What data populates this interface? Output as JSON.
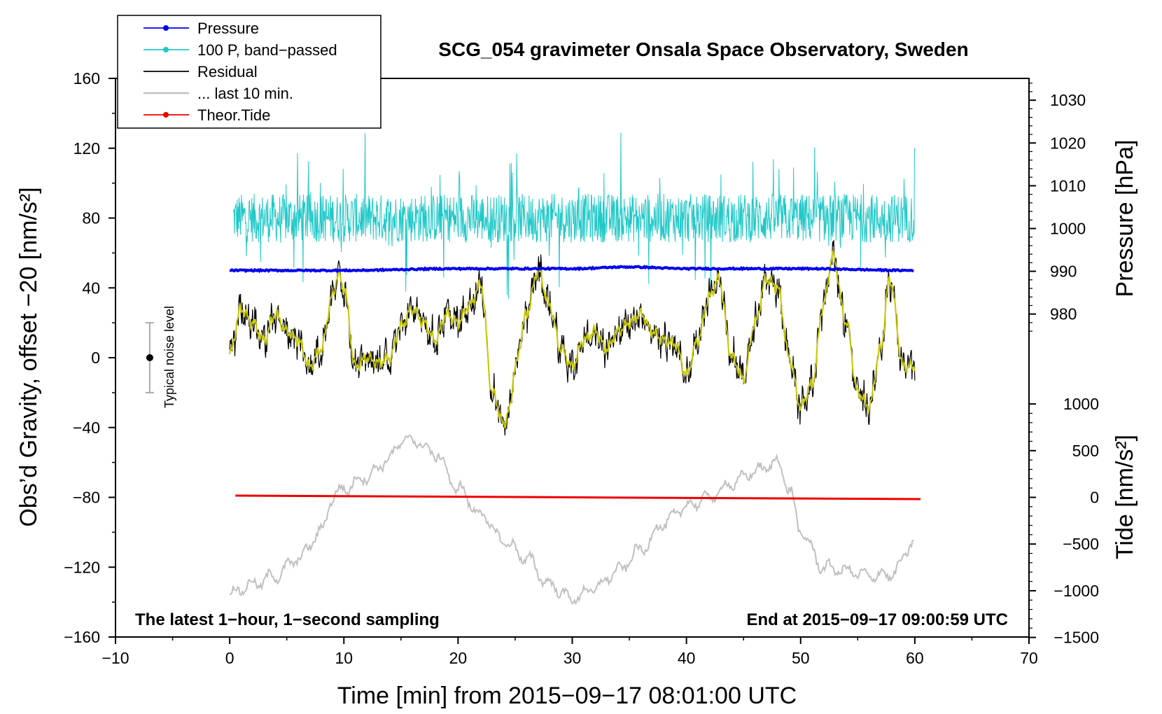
{
  "chart_data": {
    "type": "line",
    "title": "SCG_054 gravimeter Onsala Space Observatory, Sweden",
    "xlabel": "Time [min] from 2015−09−17 08:01:00 UTC",
    "ylabel": "Obs’d Gravity, offset −20 [nm/s²]",
    "ylabel_right_top": "Pressure [hPa]",
    "ylabel_right_bottom": "Tide [nm/s²]",
    "annotation_left": "The latest 1−hour, 1−second sampling",
    "annotation_right": "End at 2015−09−17 09:00:59 UTC",
    "noise_label": "Typical noise level",
    "noise_bar": {
      "x": -7,
      "center": 0,
      "halfwidth": 20
    },
    "xlim": [
      -10,
      70
    ],
    "ylim": [
      -160,
      160
    ],
    "xticks": [
      "−10",
      "0",
      "10",
      "20",
      "30",
      "40",
      "50",
      "60",
      "70"
    ],
    "xtick_values": [
      -10,
      0,
      10,
      20,
      30,
      40,
      50,
      60,
      70
    ],
    "yticks": [
      "−160",
      "−120",
      "−80",
      "−40",
      "0",
      "40",
      "80",
      "120",
      "160"
    ],
    "ytick_values": [
      -160,
      -120,
      -80,
      -40,
      0,
      40,
      80,
      120,
      160
    ],
    "pressure_axis": {
      "ticks": [
        "980",
        "990",
        "1000",
        "1010",
        "1020",
        "1030"
      ],
      "values": [
        980,
        990,
        1000,
        1010,
        1020,
        1030
      ],
      "gravity_at_980": 25,
      "gravity_per_hpa": 2.45
    },
    "tide_axis": {
      "ticks": [
        "1000",
        "500",
        "0",
        "−500",
        "−1000",
        "−1500"
      ],
      "values": [
        1000,
        500,
        0,
        -500,
        -1000,
        -1500
      ],
      "gravity_at_0": -80,
      "gravity_per_unit": 0.0535
    },
    "legend": [
      {
        "name": "Pressure",
        "color": "#0000ee",
        "marker": true
      },
      {
        "name": "100 P, band−passed",
        "color": "#22c8c8",
        "marker": true
      },
      {
        "name": "Residual",
        "color": "#000000",
        "marker": false
      },
      {
        "name": "... last 10 min.",
        "color": "#c0c0c0",
        "marker": false
      },
      {
        "name": "Theor.Tide",
        "color": "#ee0000",
        "marker": true
      }
    ],
    "series": [
      {
        "name": "Residual (smoothed, yellow overlay)",
        "color": "#c8c800",
        "x": [
          0,
          1,
          2,
          3,
          4,
          5,
          6,
          7,
          8,
          9,
          9.5,
          10,
          11,
          12,
          13,
          14,
          15,
          16,
          17,
          18,
          19,
          20,
          21,
          22,
          23,
          24,
          24.5,
          25,
          26,
          27,
          28,
          29,
          30,
          31,
          32,
          33,
          34,
          35,
          36,
          37,
          38,
          39,
          40,
          41,
          42,
          42.8,
          44,
          45,
          46,
          47,
          48,
          49,
          50,
          51,
          52,
          52.8,
          54,
          55,
          56,
          57,
          57.8,
          59,
          60
        ],
        "y": [
          2,
          28,
          20,
          10,
          25,
          15,
          10,
          -5,
          5,
          35,
          48,
          40,
          -5,
          0,
          -3,
          0,
          18,
          28,
          20,
          10,
          25,
          20,
          30,
          42,
          -20,
          -38,
          -30,
          -5,
          25,
          50,
          30,
          5,
          -5,
          10,
          15,
          5,
          15,
          20,
          25,
          15,
          10,
          8,
          -10,
          10,
          35,
          45,
          0,
          -12,
          20,
          45,
          40,
          0,
          -28,
          -15,
          30,
          58,
          20,
          -20,
          -28,
          5,
          45,
          -5,
          -5
        ]
      },
      {
        "name": "100 P, band−passed",
        "color": "#22c8c8",
        "x_range": [
          0.3,
          60
        ],
        "mean": 80,
        "amplitude": 14
      },
      {
        "name": "Pressure",
        "color": "#0000ee",
        "x": [
          0,
          10,
          20,
          30,
          35,
          40,
          50,
          60
        ],
        "y": [
          50,
          50,
          51,
          51,
          52,
          51,
          51,
          50
        ]
      },
      {
        "name": "... last 10 min.",
        "color": "#c0c0c0",
        "x": [
          0,
          2,
          4,
          6,
          8,
          9,
          10,
          12,
          14,
          15,
          16,
          18,
          20,
          22,
          24,
          26,
          28,
          30,
          32,
          34,
          36,
          38,
          40,
          42,
          44,
          46,
          48,
          49,
          50,
          52,
          54,
          56,
          58,
          60
        ],
        "y": [
          -135,
          -130,
          -125,
          -115,
          -100,
          -80,
          -75,
          -68,
          -58,
          -48,
          -47,
          -55,
          -75,
          -90,
          -105,
          -115,
          -130,
          -138,
          -132,
          -122,
          -110,
          -95,
          -85,
          -80,
          -72,
          -65,
          -60,
          -75,
          -100,
          -120,
          -122,
          -125,
          -124,
          -105
        ]
      },
      {
        "name": "Theor.Tide",
        "color": "#ee0000",
        "x": [
          0.5,
          60.5
        ],
        "y": [
          -79,
          -81
        ]
      }
    ]
  }
}
